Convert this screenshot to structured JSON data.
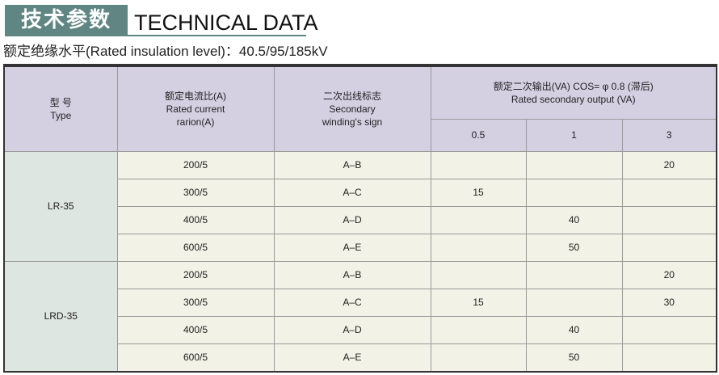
{
  "header": {
    "title_cn": "技术参数",
    "title_en": "TECHNICAL DATA",
    "subtitle": "额定绝缘水平(Rated insulation level)：40.5/95/185kV"
  },
  "table": {
    "col_type": [
      "型 号",
      "Type"
    ],
    "col_ratio": [
      "额定电流比(A)",
      "Rated current",
      "rarion(A)"
    ],
    "col_sign": [
      "二次出线标志",
      "Secondary",
      "winding's sign"
    ],
    "col_output": [
      "额定二次输出(VA) COS= φ 0.8 (滞后)",
      "Rated secondary output (VA)"
    ],
    "accuracy_classes": [
      "0.5",
      "1",
      "3"
    ],
    "groups": [
      {
        "type": "LR-35",
        "rows": [
          {
            "ratio": "200/5",
            "sign": "A–B",
            "c05": "",
            "c1": "",
            "c3": "20"
          },
          {
            "ratio": "300/5",
            "sign": "A–C",
            "c05": "15",
            "c1": "",
            "c3": ""
          },
          {
            "ratio": "400/5",
            "sign": "A–D",
            "c05": "",
            "c1": "40",
            "c3": ""
          },
          {
            "ratio": "600/5",
            "sign": "A–E",
            "c05": "",
            "c1": "50",
            "c3": ""
          }
        ]
      },
      {
        "type": "LRD-35",
        "rows": [
          {
            "ratio": "200/5",
            "sign": "A–B",
            "c05": "",
            "c1": "",
            "c3": "20"
          },
          {
            "ratio": "300/5",
            "sign": "A–C",
            "c05": "15",
            "c1": "",
            "c3": "30"
          },
          {
            "ratio": "400/5",
            "sign": "A–D",
            "c05": "",
            "c1": "40",
            "c3": ""
          },
          {
            "ratio": "600/5",
            "sign": "A–E",
            "c05": "",
            "c1": "50",
            "c3": ""
          }
        ]
      }
    ]
  }
}
